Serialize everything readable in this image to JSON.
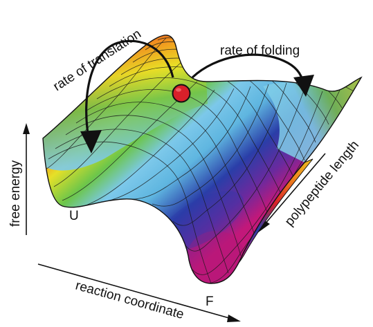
{
  "figure": {
    "labels": {
      "rate_of_translation": "rate of translation",
      "rate_of_folding": "rate of folding",
      "free_energy": "free energy",
      "reaction_coordinate": "reaction coordinate",
      "polypeptide_length": "polypeptide length",
      "state_unfolded": "U",
      "state_folded": "F"
    },
    "colors": {
      "marker": "#d8202a",
      "arrow": "#111111",
      "mesh": "#1a1a1a"
    }
  }
}
